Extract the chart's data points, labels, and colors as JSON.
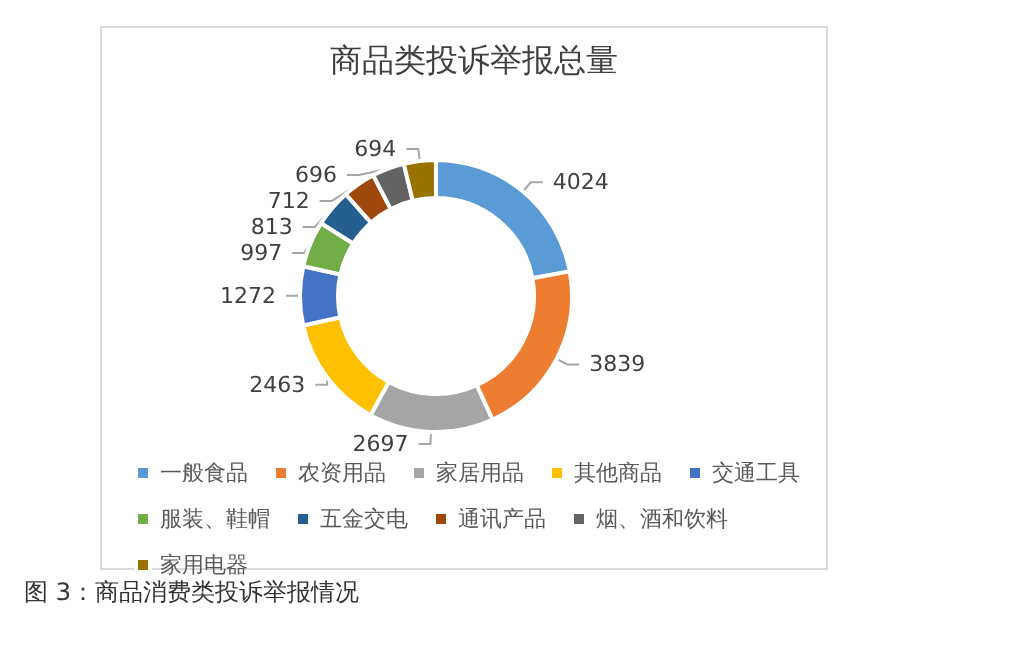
{
  "chart_data": {
    "type": "donut",
    "title": "商品类投诉举报总量",
    "categories": [
      "一般食品",
      "农资用品",
      "家居用品",
      "其他商品",
      "交通工具",
      "服装、鞋帽",
      "五金交电",
      "通讯产品",
      "烟、酒和饮料",
      "家用电器"
    ],
    "values": [
      4024,
      3839,
      2697,
      2463,
      1272,
      997,
      813,
      712,
      696,
      694
    ],
    "colors": [
      "#5b9bd5",
      "#ed7d31",
      "#a5a5a5",
      "#ffc000",
      "#4472c4",
      "#70ad47",
      "#255e91",
      "#9e480e",
      "#636363",
      "#997300"
    ],
    "data_labels": true,
    "legend": "bottom",
    "annotations": [
      "图 3：商品消费类投诉举报情况"
    ]
  }
}
